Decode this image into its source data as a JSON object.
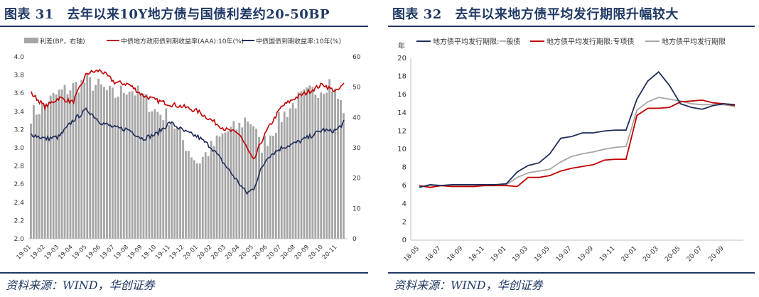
{
  "left": {
    "figure_label": "图表 31",
    "title": "去年以来10Y地方债与国债利差约20-50BP",
    "source": "资料来源：WIND，华创证券",
    "chart_data": {
      "type": "bar+line",
      "legend": [
        "利差(BP，右轴)",
        "中债地方政府债到期收益率(AAA):10年(%)",
        "中债国债到期收益率:10年(%)"
      ],
      "left_axis": {
        "min": 2.0,
        "max": 4.0,
        "ticks": [
          "2.0",
          "2.2",
          "2.4",
          "2.6",
          "2.8",
          "3.0",
          "3.2",
          "3.4",
          "3.6",
          "3.8",
          "4.0"
        ]
      },
      "right_axis": {
        "min": 0,
        "max": 60,
        "ticks": [
          "0",
          "10",
          "20",
          "30",
          "40",
          "50",
          "60"
        ]
      },
      "x_labels": [
        "19-01",
        "19-02",
        "19-03",
        "19-04",
        "19-05",
        "19-06",
        "19-07",
        "19-08",
        "19-09",
        "19-10",
        "19-11",
        "19-12",
        "20-01",
        "20-02",
        "20-03",
        "20-04",
        "20-05",
        "20-06",
        "20-07",
        "20-08",
        "20-09",
        "20-10",
        "20-11"
      ],
      "monthly_x": [
        0,
        1,
        2,
        3,
        4,
        5,
        6,
        7,
        8,
        9,
        10,
        11,
        12,
        13,
        14,
        15,
        15.5,
        16,
        16.5,
        17,
        18,
        19,
        20,
        21,
        21.5,
        22,
        22.5
      ],
      "spread_bp": [
        41,
        44,
        48,
        50,
        52,
        50,
        47,
        50,
        47,
        42,
        40,
        32,
        25,
        30,
        35,
        37,
        40,
        38,
        30,
        33,
        40,
        45,
        48,
        50,
        52,
        47,
        43
      ],
      "local_gov_10y": [
        3.6,
        3.45,
        3.55,
        3.5,
        3.82,
        3.85,
        3.72,
        3.7,
        3.58,
        3.52,
        3.48,
        3.45,
        3.4,
        3.3,
        3.2,
        3.15,
        3.0,
        2.85,
        3.05,
        3.2,
        3.45,
        3.55,
        3.62,
        3.7,
        3.65,
        3.62,
        3.7
      ],
      "treasury_10y": [
        3.15,
        3.1,
        3.12,
        3.3,
        3.42,
        3.28,
        3.22,
        3.2,
        3.1,
        3.15,
        3.28,
        3.18,
        3.12,
        3.0,
        2.8,
        2.6,
        2.5,
        2.55,
        2.75,
        2.9,
        3.0,
        3.05,
        3.12,
        3.2,
        3.18,
        3.2,
        3.28
      ]
    }
  },
  "right": {
    "figure_label": "图表 32",
    "title": "去年以来地方债平均发行期限升幅较大",
    "source": "资料来源：WIND，华创证券",
    "chart_data": {
      "type": "line",
      "y_unit": "年",
      "ylim": [
        0,
        20
      ],
      "y_ticks": [
        "0",
        "2",
        "4",
        "6",
        "8",
        "10",
        "12",
        "14",
        "16",
        "18",
        "20"
      ],
      "x_labels": [
        "18-05",
        "18-07",
        "18-09",
        "18-11",
        "19-01",
        "19-03",
        "19-05",
        "19-07",
        "19-09",
        "19-11",
        "20-01",
        "20-03",
        "20-05",
        "20-07",
        "20-09"
      ],
      "series": [
        {
          "name": "地方债平均发行期限:一般债",
          "color": "#1f2d5a",
          "values": [
            5.8,
            6.1,
            6.0,
            6.1,
            6.1,
            6.1,
            6.1,
            6.1,
            6.2,
            7.5,
            8.2,
            8.5,
            9.5,
            11.2,
            11.4,
            11.8,
            11.8,
            12.0,
            12.1,
            12.1,
            15.5,
            17.5,
            18.5,
            17.0,
            15.0,
            14.6,
            14.4,
            14.8,
            15.0,
            14.9
          ]
        },
        {
          "name": "地方债平均发行期限:专项债",
          "color": "#c00000",
          "values": [
            6.0,
            5.8,
            6.0,
            5.9,
            5.9,
            5.9,
            6.0,
            6.0,
            6.0,
            5.9,
            6.9,
            6.9,
            7.1,
            7.6,
            7.9,
            8.1,
            8.3,
            8.8,
            8.9,
            8.9,
            13.7,
            14.5,
            14.5,
            14.6,
            15.2,
            15.3,
            15.4,
            15.1,
            15.0,
            14.8
          ]
        },
        {
          "name": "地方债平均发行期限",
          "color": "#a6a6a6",
          "values": [
            5.9,
            6.0,
            6.0,
            6.0,
            6.0,
            6.0,
            6.1,
            6.1,
            6.1,
            6.9,
            7.4,
            7.6,
            7.8,
            8.6,
            9.2,
            9.5,
            9.7,
            10.0,
            10.2,
            10.3,
            14.3,
            15.2,
            15.7,
            15.5,
            15.3,
            15.0,
            14.9,
            14.9,
            14.9,
            14.7
          ]
        }
      ]
    }
  }
}
